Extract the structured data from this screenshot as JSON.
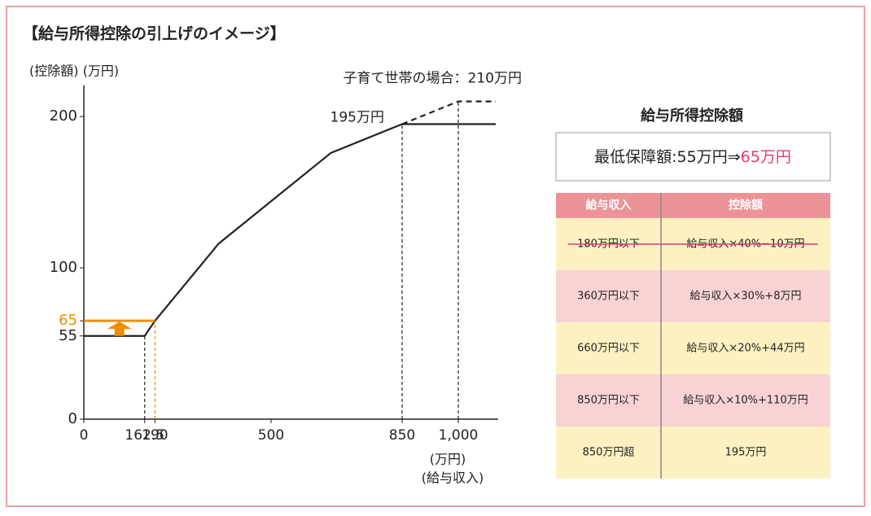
{
  "title": "【給与所得控除の引上げのイメージ】",
  "chart_data": {
    "type": "line",
    "y_label": "(控除額) (万円)",
    "x_label": [
      "(万円)",
      "(給与収入)"
    ],
    "xlim": [
      0,
      1100
    ],
    "ylim": [
      0,
      220
    ],
    "xticks": [
      0,
      162.5,
      190,
      500,
      850,
      {
        "value": 1000,
        "label": "1,000"
      }
    ],
    "yticks": [
      0,
      55,
      65,
      100,
      200
    ],
    "series": [
      {
        "color": "#222222",
        "dashed": false,
        "x": [
          0,
          162.5,
          190,
          360,
          660,
          850,
          1100
        ],
        "values": [
          55,
          55,
          65,
          116,
          176,
          195,
          195
        ]
      },
      {
        "color": "#222222",
        "dashed": true,
        "x": [
          850,
          1000,
          1100
        ],
        "values": [
          195,
          210,
          210
        ]
      },
      {
        "color": "#f08c00",
        "dashed": false,
        "x": [
          0,
          190
        ],
        "values": [
          65,
          65
        ]
      }
    ],
    "annotations": [
      {
        "text": "195万円",
        "x": 850,
        "y": 195
      },
      {
        "text": "子育て世帯の場合：210万円",
        "x": 1000,
        "y": 210
      }
    ]
  },
  "panel": {
    "title": "給与所得控除額",
    "minimum": {
      "text": "最低保障額:55万円⇒",
      "highlight": "65万円"
    },
    "table": {
      "header": [
        "給与収入",
        "控除額"
      ],
      "rows": [
        {
          "cells": [
            "180万円以下",
            "給与収入×40%−10万円"
          ],
          "struck": true
        },
        {
          "cells": [
            "360万円以下",
            "給与収入×30%+8万円"
          ],
          "struck": false
        },
        {
          "cells": [
            "660万円以下",
            "給与収入×20%+44万円"
          ],
          "struck": false
        },
        {
          "cells": [
            "850万円以下",
            "給与収入×10%+110万円"
          ],
          "struck": false
        },
        {
          "cells": [
            "850万円超",
            "195万円"
          ],
          "struck": false
        }
      ]
    }
  }
}
